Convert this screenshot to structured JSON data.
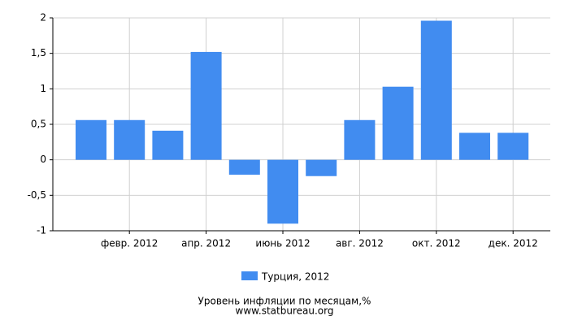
{
  "chart_data": {
    "type": "bar",
    "title": "Уровень инфляции по месяцам,%",
    "subtitle": "www.statbureau.org",
    "categories": [
      null,
      "февр. 2012",
      null,
      "апр. 2012",
      null,
      "июнь 2012",
      null,
      "авг. 2012",
      null,
      "окт. 2012",
      null,
      "дек. 2012"
    ],
    "series": [
      {
        "name": "Турция, 2012",
        "color": "#418cf0",
        "values": [
          0.56,
          0.56,
          0.41,
          1.52,
          -0.21,
          -0.9,
          -0.23,
          0.56,
          1.03,
          1.96,
          0.38,
          0.38
        ]
      }
    ],
    "ylim": [
      -1,
      2
    ],
    "yticks": [
      -1,
      {
        "value": -0.5,
        "label": "-0,5"
      },
      0,
      {
        "value": 0.5,
        "label": "0,5"
      },
      1,
      {
        "value": 1.5,
        "label": "1,5"
      },
      2
    ],
    "grid": true
  }
}
